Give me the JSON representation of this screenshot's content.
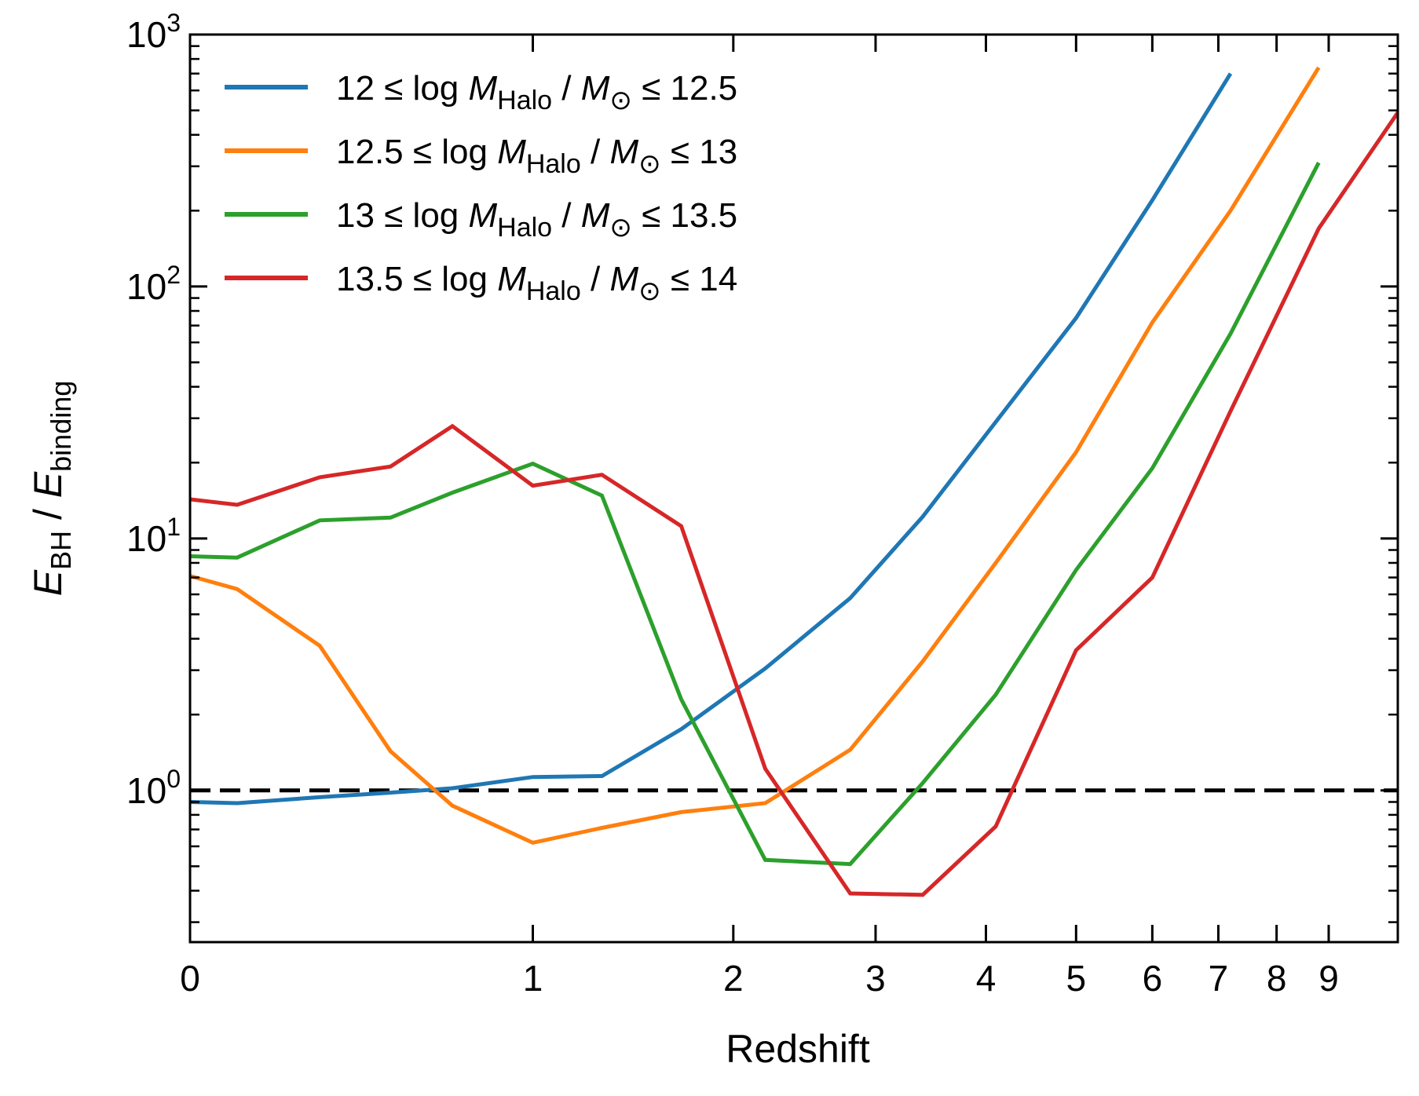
{
  "chart_data": {
    "type": "line",
    "xlabel": "Redshift",
    "ylabel": {
      "numerator_symbol": "E",
      "numerator_subscript": "BH",
      "separator": "/",
      "denominator_symbol": "E",
      "denominator_subscript": "binding"
    },
    "x_scale": "log(1+z)",
    "y_scale": "log",
    "xlim": [
      0,
      10.5
    ],
    "ylim": [
      0.25,
      1000
    ],
    "x_ticks": [
      {
        "value": 0,
        "label": "0"
      },
      {
        "value": 1,
        "label": "1"
      },
      {
        "value": 2,
        "label": "2"
      },
      {
        "value": 3,
        "label": "3"
      },
      {
        "value": 4,
        "label": "4"
      },
      {
        "value": 5,
        "label": "5"
      },
      {
        "value": 6,
        "label": "6"
      },
      {
        "value": 7,
        "label": "7"
      },
      {
        "value": 8,
        "label": "8"
      },
      {
        "value": 9,
        "label": "9"
      }
    ],
    "y_major_ticks": [
      {
        "value": 1,
        "base": "10",
        "exponent": "0"
      },
      {
        "value": 10,
        "base": "10",
        "exponent": "1"
      },
      {
        "value": 100,
        "base": "10",
        "exponent": "2"
      },
      {
        "value": 1000,
        "base": "10",
        "exponent": "3"
      }
    ],
    "y_minor_ticks": [
      0.3,
      0.4,
      0.5,
      0.6,
      0.7,
      0.8,
      0.9,
      2,
      3,
      4,
      5,
      6,
      7,
      8,
      9,
      20,
      30,
      40,
      50,
      60,
      70,
      80,
      90,
      200,
      300,
      400,
      500,
      600,
      700,
      800,
      900
    ],
    "reference_line": {
      "y": 1,
      "style": "dashed",
      "color": "#000000"
    },
    "legend_position": "top-left",
    "series": [
      {
        "name": "12 ≤ log M_Halo / M_⊙ ≤ 12.5",
        "legend": {
          "lower": "12",
          "upper": "12.5"
        },
        "color": "#1f77b4",
        "x": [
          0,
          0.1,
          0.3,
          0.5,
          0.7,
          1.0,
          1.3,
          1.7,
          2.2,
          2.8,
          3.4,
          4.1,
          5.0,
          6.0,
          7.2
        ],
        "y": [
          0.9,
          0.89,
          0.94,
          0.98,
          1.02,
          1.13,
          1.14,
          1.75,
          3.05,
          5.8,
          12.2,
          29.0,
          75.0,
          220.0,
          700.0
        ]
      },
      {
        "name": "12.5 ≤ log M_Halo / M_⊙ ≤ 13",
        "legend": {
          "lower": "12.5",
          "upper": "13"
        },
        "color": "#ff7f0e",
        "x": [
          0,
          0.1,
          0.3,
          0.5,
          0.7,
          1.0,
          1.3,
          1.7,
          2.2,
          2.8,
          3.4,
          4.1,
          5.0,
          6.0,
          7.2,
          8.8
        ],
        "y": [
          7.1,
          6.3,
          3.75,
          1.43,
          0.87,
          0.62,
          0.71,
          0.82,
          0.89,
          1.45,
          3.25,
          8.0,
          22.0,
          72.0,
          200.0,
          740.0
        ]
      },
      {
        "name": "13 ≤ log M_Halo / M_⊙ ≤ 13.5",
        "legend": {
          "lower": "13",
          "upper": "13.5"
        },
        "color": "#2ca02c",
        "x": [
          0,
          0.1,
          0.3,
          0.5,
          0.7,
          1.0,
          1.3,
          1.7,
          2.2,
          2.8,
          3.4,
          4.1,
          5.0,
          6.0,
          7.2,
          8.8
        ],
        "y": [
          8.5,
          8.4,
          11.8,
          12.1,
          15.2,
          19.8,
          14.8,
          2.3,
          0.53,
          0.51,
          1.07,
          2.4,
          7.5,
          19.0,
          65.0,
          310.0
        ]
      },
      {
        "name": "13.5 ≤ log M_Halo / M_⊙ ≤ 14",
        "legend": {
          "lower": "13.5",
          "upper": "14"
        },
        "color": "#d62728",
        "x": [
          0,
          0.1,
          0.3,
          0.5,
          0.7,
          1.0,
          1.3,
          1.7,
          2.2,
          2.8,
          3.4,
          4.1,
          5.0,
          6.0,
          7.2,
          8.8,
          10.5
        ],
        "y": [
          14.3,
          13.6,
          17.5,
          19.3,
          27.9,
          16.2,
          17.9,
          11.2,
          1.22,
          0.39,
          0.385,
          0.72,
          3.6,
          7.0,
          32.0,
          170.0,
          490.0
        ]
      }
    ]
  },
  "legend_text": {
    "relation": "≤",
    "log_label": "log",
    "mass_symbol": "M",
    "mass_subscript": "Halo",
    "separator": "/",
    "solar_symbol": "M",
    "solar_subscript": "⊙"
  }
}
